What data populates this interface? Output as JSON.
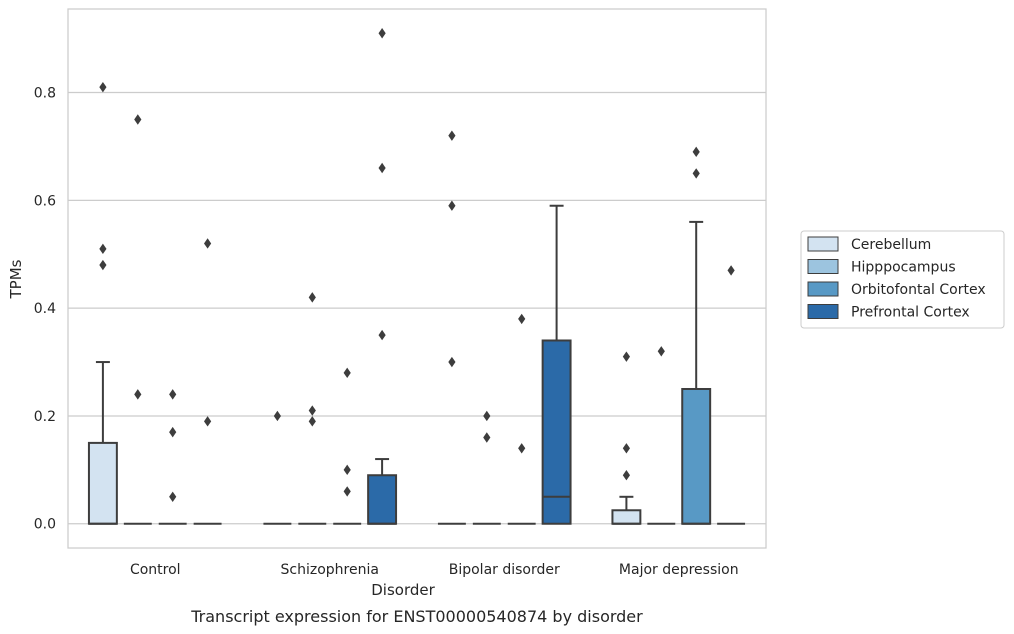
{
  "chart_data": {
    "type": "box",
    "caption": "Transcript expression for ENST00000540874 by disorder",
    "xlabel": "Disorder",
    "ylabel": "TPMs",
    "ylim": [
      -0.045,
      0.955
    ],
    "yticks": [
      0.0,
      0.2,
      0.4,
      0.6,
      0.8
    ],
    "ytick_labels": [
      "0.0",
      "0.2",
      "0.4",
      "0.6",
      "0.8"
    ],
    "grid": true,
    "legend_position": "right",
    "categories": [
      "Control",
      "Schizophrenia",
      "Bipolar disorder",
      "Major depression"
    ],
    "series": [
      {
        "name": "Cerebellum",
        "color": "#d3e3f1",
        "boxes": [
          {
            "q1": 0.0,
            "median": 0.0,
            "q3": 0.15,
            "whisker_low": 0.0,
            "whisker_high": 0.3,
            "outliers": [
              0.81,
              0.51,
              0.48
            ]
          },
          {
            "q1": 0.0,
            "median": 0.0,
            "q3": 0.0,
            "whisker_low": 0.0,
            "whisker_high": 0.0,
            "outliers": [
              0.2
            ]
          },
          {
            "q1": 0.0,
            "median": 0.0,
            "q3": 0.0,
            "whisker_low": 0.0,
            "whisker_high": 0.0,
            "outliers": [
              0.72,
              0.59,
              0.3
            ]
          },
          {
            "q1": 0.0,
            "median": 0.0,
            "q3": 0.025,
            "whisker_low": 0.0,
            "whisker_high": 0.05,
            "outliers": [
              0.31,
              0.14,
              0.09
            ]
          }
        ]
      },
      {
        "name": "Hipppocampus",
        "color": "#9cc4df",
        "boxes": [
          {
            "q1": 0.0,
            "median": 0.0,
            "q3": 0.0,
            "whisker_low": 0.0,
            "whisker_high": 0.0,
            "outliers": [
              0.75,
              0.24
            ]
          },
          {
            "q1": 0.0,
            "median": 0.0,
            "q3": 0.0,
            "whisker_low": 0.0,
            "whisker_high": 0.0,
            "outliers": [
              0.42,
              0.21,
              0.19
            ]
          },
          {
            "q1": 0.0,
            "median": 0.0,
            "q3": 0.0,
            "whisker_low": 0.0,
            "whisker_high": 0.0,
            "outliers": [
              0.2,
              0.16
            ]
          },
          {
            "q1": 0.0,
            "median": 0.0,
            "q3": 0.0,
            "whisker_low": 0.0,
            "whisker_high": 0.0,
            "outliers": [
              0.32
            ]
          }
        ]
      },
      {
        "name": "Orbitofontal Cortex",
        "color": "#5899c5",
        "boxes": [
          {
            "q1": 0.0,
            "median": 0.0,
            "q3": 0.0,
            "whisker_low": 0.0,
            "whisker_high": 0.0,
            "outliers": [
              0.24,
              0.17,
              0.05
            ]
          },
          {
            "q1": 0.0,
            "median": 0.0,
            "q3": 0.0,
            "whisker_low": 0.0,
            "whisker_high": 0.0,
            "outliers": [
              0.28,
              0.1,
              0.06
            ]
          },
          {
            "q1": 0.0,
            "median": 0.0,
            "q3": 0.0,
            "whisker_low": 0.0,
            "whisker_high": 0.0,
            "outliers": [
              0.38,
              0.14
            ]
          },
          {
            "q1": 0.0,
            "median": 0.0,
            "q3": 0.25,
            "whisker_low": 0.0,
            "whisker_high": 0.56,
            "outliers": [
              0.69,
              0.65
            ]
          }
        ]
      },
      {
        "name": "Prefrontal Cortex",
        "color": "#2b6aa8",
        "boxes": [
          {
            "q1": 0.0,
            "median": 0.0,
            "q3": 0.0,
            "whisker_low": 0.0,
            "whisker_high": 0.0,
            "outliers": [
              0.52,
              0.19
            ]
          },
          {
            "q1": 0.0,
            "median": 0.0,
            "q3": 0.09,
            "whisker_low": 0.0,
            "whisker_high": 0.12,
            "outliers": [
              0.91,
              0.66,
              0.35
            ]
          },
          {
            "q1": 0.0,
            "median": 0.05,
            "q3": 0.34,
            "whisker_low": 0.0,
            "whisker_high": 0.59,
            "outliers": []
          },
          {
            "q1": 0.0,
            "median": 0.0,
            "q3": 0.0,
            "whisker_low": 0.0,
            "whisker_high": 0.0,
            "outliers": [
              0.47
            ]
          }
        ]
      }
    ]
  }
}
